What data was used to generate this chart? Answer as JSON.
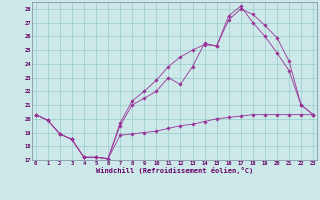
{
  "xlabel": "Windchill (Refroidissement éolien,°C)",
  "bg_color": "#cce8e8",
  "grid_color": "#99cccc",
  "line_color": "#993399",
  "ylim": [
    17,
    28.5
  ],
  "xlim": [
    -0.3,
    23.3
  ],
  "yticks": [
    17,
    18,
    19,
    20,
    21,
    22,
    23,
    24,
    25,
    26,
    27,
    28
  ],
  "xticks": [
    0,
    1,
    2,
    3,
    4,
    5,
    6,
    7,
    8,
    9,
    10,
    11,
    12,
    13,
    14,
    15,
    16,
    17,
    18,
    19,
    20,
    21,
    22,
    23
  ],
  "line1_x": [
    0,
    1,
    2,
    3,
    4,
    5,
    6,
    7,
    8,
    9,
    10,
    11,
    12,
    13,
    14,
    15,
    16,
    17,
    18,
    19,
    20,
    21,
    22,
    23
  ],
  "line1_y": [
    20.3,
    19.9,
    18.9,
    18.5,
    17.2,
    17.2,
    17.1,
    18.8,
    18.9,
    19.0,
    19.1,
    19.3,
    19.5,
    19.6,
    19.8,
    20.0,
    20.1,
    20.2,
    20.3,
    20.3,
    20.3,
    20.3,
    20.3,
    20.3
  ],
  "line2_x": [
    0,
    1,
    2,
    3,
    4,
    5,
    6,
    7,
    8,
    9,
    10,
    11,
    12,
    13,
    14,
    15,
    16,
    17,
    18,
    19,
    20,
    21,
    22,
    23
  ],
  "line2_y": [
    20.3,
    19.9,
    18.9,
    18.5,
    17.2,
    17.2,
    17.1,
    19.5,
    21.0,
    21.5,
    22.0,
    23.0,
    22.5,
    23.8,
    25.5,
    25.3,
    27.2,
    28.0,
    27.6,
    26.8,
    25.9,
    24.2,
    21.0,
    20.3
  ],
  "line3_x": [
    0,
    1,
    2,
    3,
    4,
    5,
    6,
    7,
    8,
    9,
    10,
    11,
    12,
    13,
    14,
    15,
    16,
    17,
    18,
    19,
    20,
    21,
    22,
    23
  ],
  "line3_y": [
    20.3,
    19.9,
    18.9,
    18.5,
    17.2,
    17.2,
    17.1,
    19.7,
    21.3,
    22.0,
    22.8,
    23.8,
    24.5,
    25.0,
    25.4,
    25.3,
    27.5,
    28.2,
    27.0,
    26.0,
    24.8,
    23.5,
    21.0,
    20.3
  ]
}
